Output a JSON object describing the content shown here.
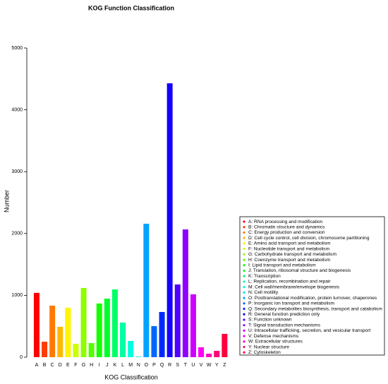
{
  "chart_data": {
    "type": "bar",
    "title": "KOG Function Classification",
    "x_label": "KOG Classification",
    "y_label": "Number",
    "categories": [
      "A",
      "B",
      "C",
      "D",
      "E",
      "F",
      "G",
      "H",
      "I",
      "J",
      "K",
      "L",
      "M",
      "N",
      "O",
      "P",
      "Q",
      "R",
      "S",
      "T",
      "U",
      "V",
      "W",
      "Y",
      "Z"
    ],
    "values": [
      1040,
      250,
      833,
      491,
      800,
      217,
      1119,
      228,
      868,
      947,
      1096,
      560,
      263,
      10,
      2158,
      502,
      731,
      4429,
      1176,
      2066,
      1016,
      160,
      57,
      103,
      377
    ],
    "colors": [
      "#FF0000",
      "#FF3D00",
      "#FF7A00",
      "#FFB800",
      "#FFF500",
      "#CCFF00",
      "#8FFF00",
      "#52FF00",
      "#14FF00",
      "#00FF29",
      "#00FF66",
      "#00FFA3",
      "#00FFE0",
      "#00E0FF",
      "#00A3FF",
      "#0066FF",
      "#0029FF",
      "#1400FF",
      "#5200FF",
      "#8F00FF",
      "#CC00FF",
      "#FF00F5",
      "#FF00B8",
      "#FF007A",
      "#FF003D"
    ],
    "legend": [
      "A:  RNA processing and modification",
      "B:  Chromatin structure and dynamics",
      "C:  Energy production and conversion",
      "D:  Cell cycle control, cell division, chromosome partitioning",
      "E:  Amino acid transport and metabolism",
      "F:  Nucleotide transport and metabolism",
      "G:  Carbohydrate transport and metabolism",
      "H:  Coenzyme transport and metabolism",
      "I:  Lipid transport and metabolism",
      "J:  Translation, ribosomal structure and biogenesis",
      "K:  Transcription",
      "L:  Replication, recombination and repair",
      "M:  Cell wall/membrane/envelope biogenesis",
      "N:  Cell motility",
      "O:  Posttranslational modification, protein turnover, chaperones",
      "P:  Inorganic ion transport and metabolism",
      "Q:  Secondary metabolites biosynthesis, transport and catabolism",
      "R:  General function prediction only",
      "S:  Function unknown",
      "T:  Signal transduction mechanisms",
      "U:  Intracellular trafficking, secretion, and vesicular transport",
      "V:  Defense mechanisms",
      "W:  Extracellular structures",
      "Y:  Nuclear structure",
      "Z:  Cytoskeleton"
    ],
    "ylim": [
      0,
      5000
    ],
    "yticks": [
      0,
      1000,
      2000,
      3000,
      4000,
      5000
    ]
  }
}
